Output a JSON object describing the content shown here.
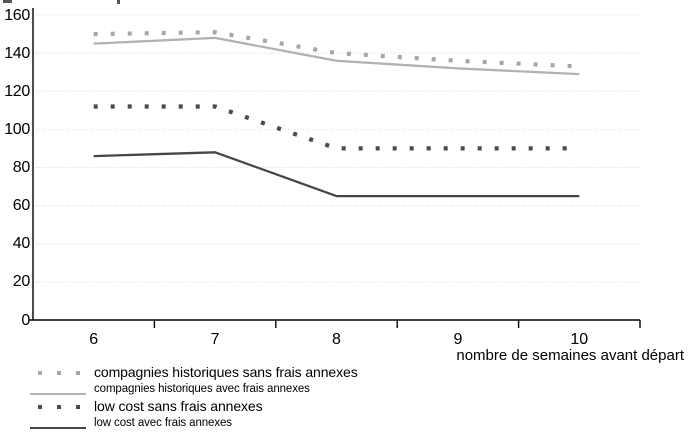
{
  "chart_data": {
    "type": "line",
    "title": "",
    "xlabel": "nombre de semaines avant départ",
    "ylabel": "",
    "x": [
      6,
      7,
      8,
      9,
      10
    ],
    "xtick_labels": [
      "6",
      "7",
      "8",
      "9",
      "10"
    ],
    "yticks": [
      0,
      20,
      40,
      60,
      80,
      100,
      120,
      140,
      160
    ],
    "ylim": [
      0,
      160
    ],
    "grid": "horizontal dotted gridlines",
    "legend_position": "bottom-left",
    "series": [
      {
        "name": "compagnies historiques sans frais annexes",
        "style": "dotted",
        "color": "#a7a7a7",
        "values": [
          150,
          151,
          140,
          136,
          133
        ]
      },
      {
        "name": "compagnies historiques avec frais annexes",
        "style": "solid",
        "color": "#b2b2b2",
        "values": [
          145,
          148,
          136,
          132,
          129
        ]
      },
      {
        "name": "low cost sans frais annexes",
        "style": "dotted",
        "color": "#4b4b4b",
        "values": [
          112,
          112,
          90,
          90,
          90
        ]
      },
      {
        "name": "low cost avec frais annexes",
        "style": "solid",
        "color": "#474747",
        "values": [
          86,
          88,
          65,
          65,
          65
        ]
      }
    ],
    "colors": {
      "axis": "#000000",
      "gridline": "#d8d8d8",
      "text": "#000000"
    }
  }
}
